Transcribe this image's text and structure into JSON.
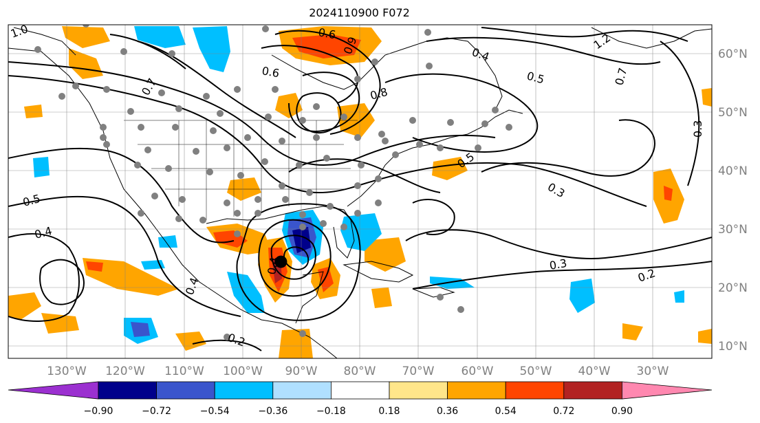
{
  "title": "2024110900 F072",
  "map": {
    "projection": "lat-lon",
    "lon_range": [
      -138,
      -18
    ],
    "lat_range": [
      8,
      65
    ],
    "gridlines": true,
    "lon_ticks": [
      {
        "value": -130,
        "label": "130°W"
      },
      {
        "value": -120,
        "label": "120°W"
      },
      {
        "value": -110,
        "label": "110°W"
      },
      {
        "value": -100,
        "label": "100°W"
      },
      {
        "value": -90,
        "label": "90°W"
      },
      {
        "value": -80,
        "label": "80°W"
      },
      {
        "value": -70,
        "label": "70°W"
      },
      {
        "value": -60,
        "label": "60°W"
      },
      {
        "value": -50,
        "label": "50°W"
      },
      {
        "value": -40,
        "label": "40°W"
      },
      {
        "value": -30,
        "label": "30°W"
      }
    ],
    "lat_ticks": [
      {
        "value": 60,
        "label": "60°N"
      },
      {
        "value": 50,
        "label": "50°N"
      },
      {
        "value": 40,
        "label": "40°N"
      },
      {
        "value": 30,
        "label": "30°N"
      },
      {
        "value": 20,
        "label": "20°N"
      },
      {
        "value": 10,
        "label": "10°N"
      }
    ],
    "contour_labels": [
      "1.0",
      "0.6",
      "0.9",
      "0.4",
      "0.5",
      "0.7",
      "0.8",
      "0.3",
      "0.2",
      "1.2",
      "0.5",
      "0.4",
      "0.3",
      "0.4",
      "0.5",
      "0.3",
      "0.2",
      "0.4",
      "0.6",
      "0.7"
    ],
    "storm_center": {
      "lon": -91.5,
      "lat": 24.5
    },
    "colors": {
      "land_outline": "#000000",
      "grid": "#808080",
      "dots": "#808080",
      "storm_center": "#000000"
    }
  },
  "colorbar": {
    "levels": [
      "−0.90",
      "−0.72",
      "−0.54",
      "−0.36",
      "−0.18",
      "0.18",
      "0.36",
      "0.54",
      "0.72",
      "0.90"
    ],
    "colors": [
      "#9b30d0",
      "#00008b",
      "#3a55cc",
      "#00bfff",
      "#b0e0ff",
      "#ffffff",
      "#ffe68a",
      "#ffa500",
      "#ff4500",
      "#b22222",
      "#ff88b0"
    ]
  }
}
